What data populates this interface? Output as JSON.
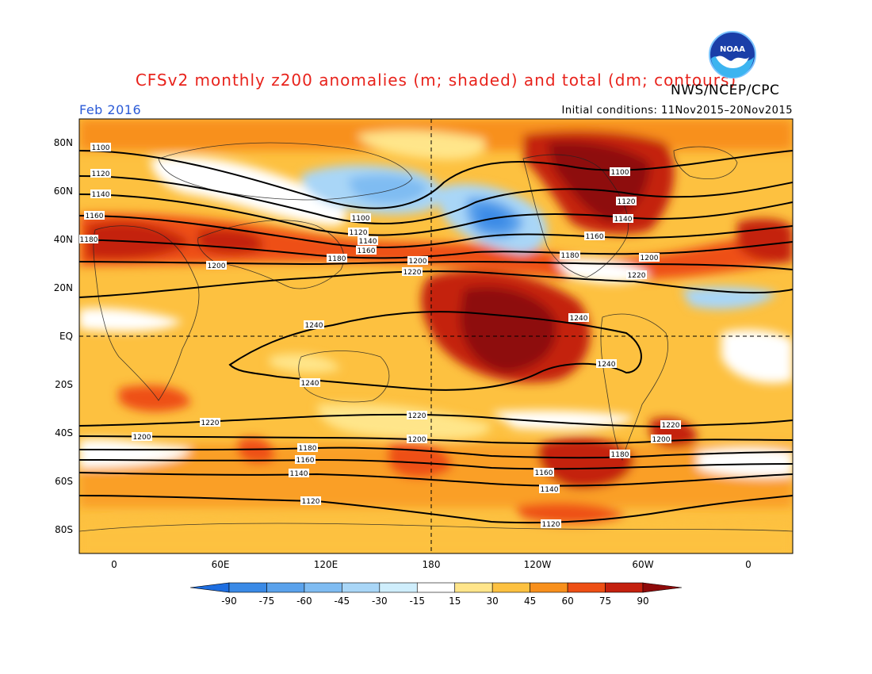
{
  "header": {
    "title": "CFSv2 monthly z200 anomalies (m; shaded) and total (dm; contours)",
    "org": "NWS/NCEP/CPC",
    "valid_month": "Feb 2016",
    "initial_conditions": "Initial conditions: 11Nov2015–20Nov2015",
    "logo_text": "NOAA"
  },
  "axes": {
    "lat_labels": [
      "80N",
      "60N",
      "40N",
      "20N",
      "EQ",
      "20S",
      "40S",
      "60S",
      "80S"
    ],
    "lon_labels": [
      "0",
      "60E",
      "120E",
      "180",
      "120W",
      "60W",
      "0"
    ]
  },
  "colorbar": {
    "levels": [
      "-90",
      "-75",
      "-60",
      "-45",
      "-30",
      "-15",
      "15",
      "30",
      "45",
      "60",
      "75",
      "90"
    ],
    "colors": [
      "#1e6ee0",
      "#3a8ae6",
      "#5aa2ec",
      "#7fbcf2",
      "#a9d6f7",
      "#cfeefc",
      "#ffffff",
      "#ffe58a",
      "#fdc140",
      "#f8901c",
      "#ee4f14",
      "#c4200e",
      "#8e0a0a"
    ]
  },
  "contour_labels": [
    "1100",
    "1120",
    "1140",
    "1160",
    "1180",
    "1200",
    "1220",
    "1240"
  ],
  "colors": {
    "title": "#e8231c",
    "valid_month": "#2b5bd7"
  }
}
